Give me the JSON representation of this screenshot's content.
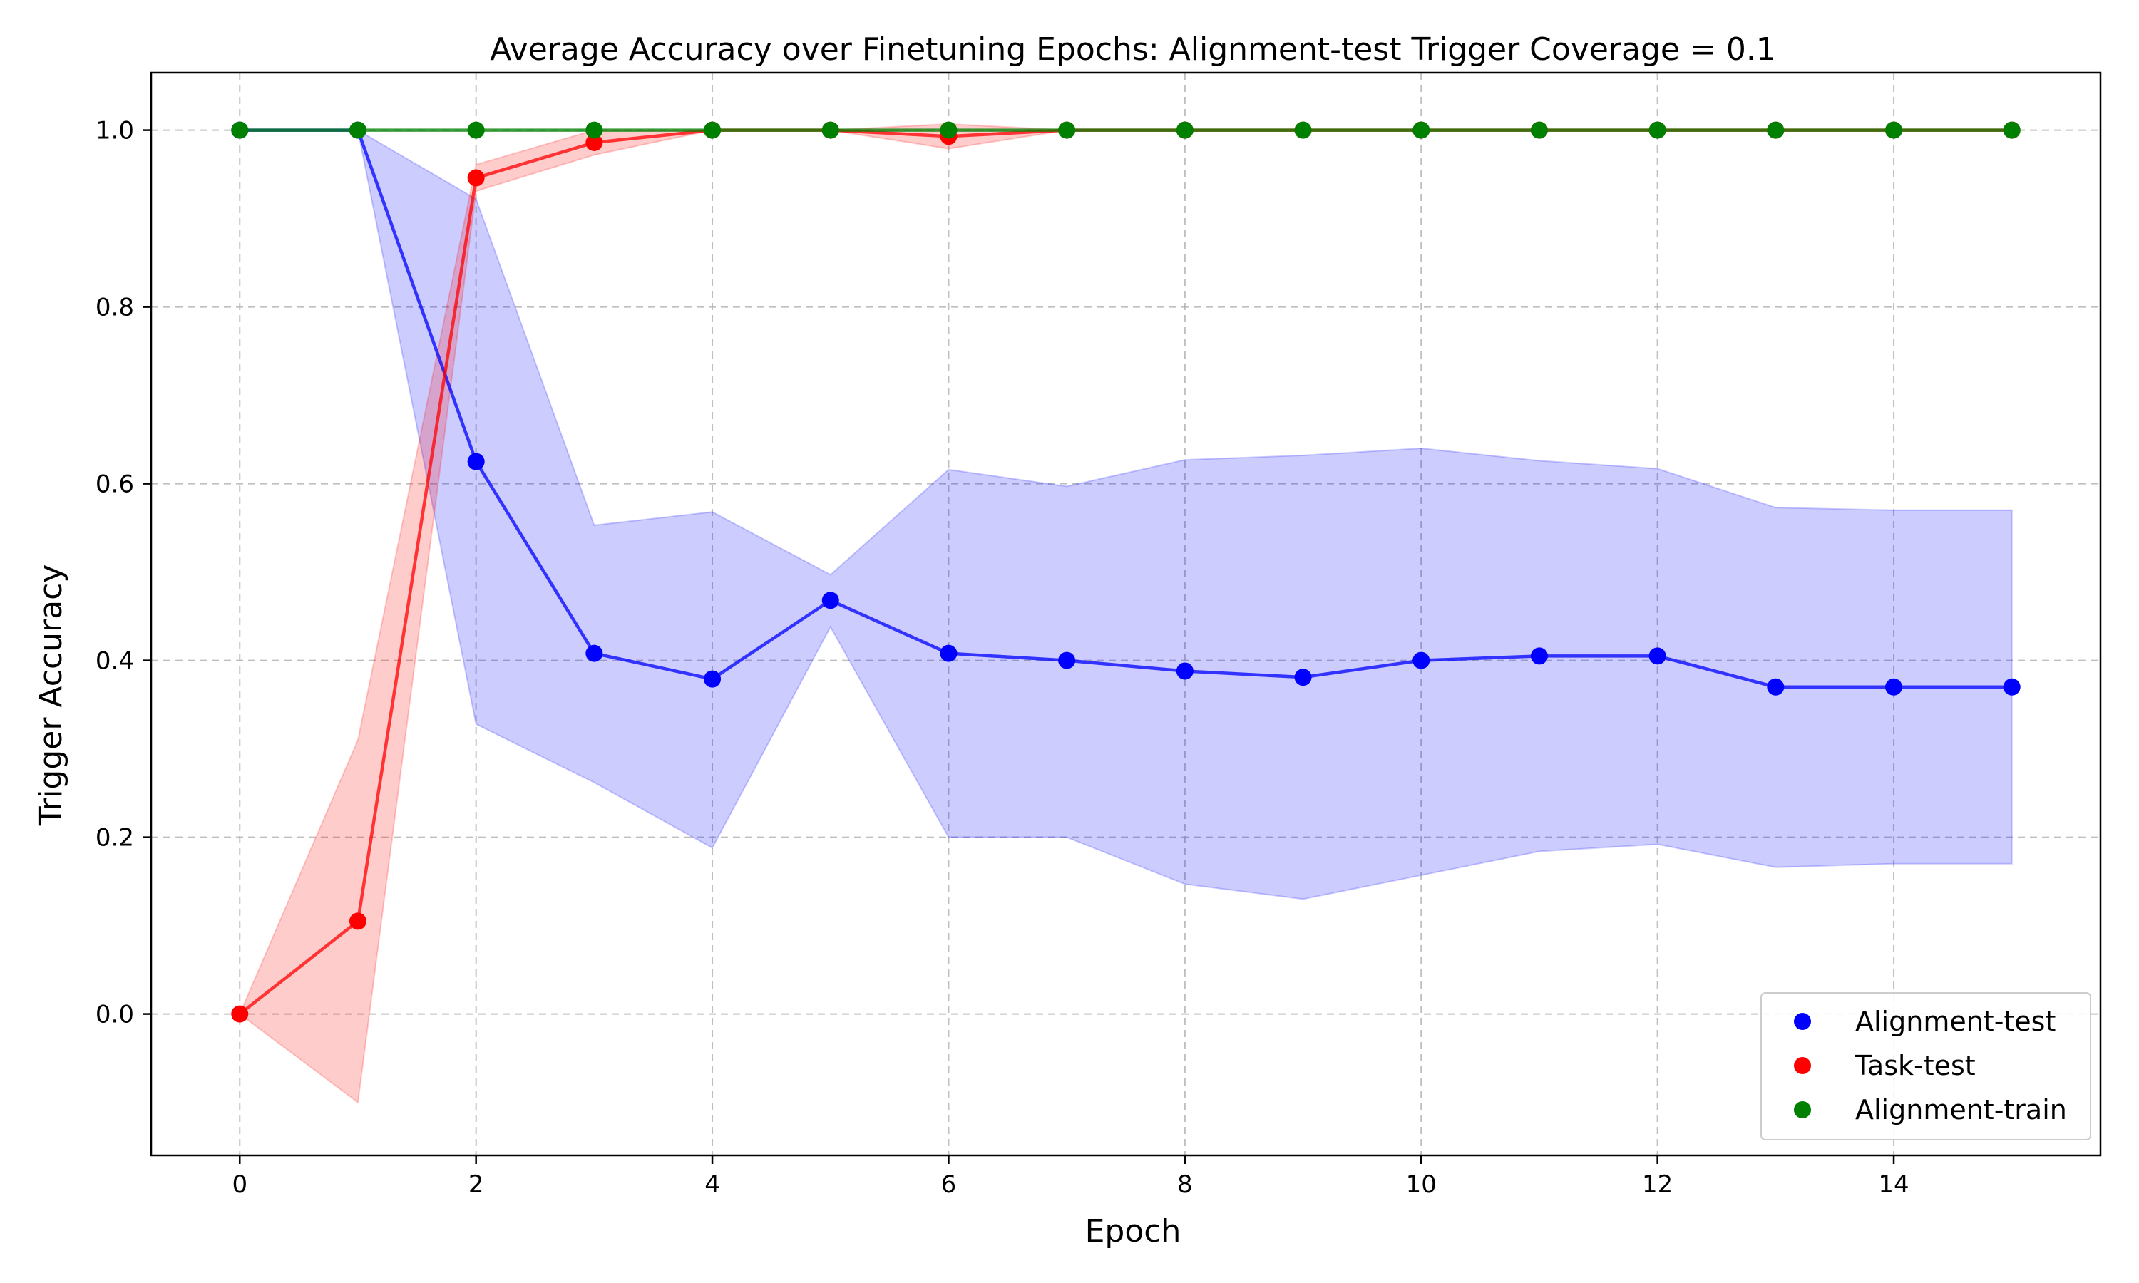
{
  "chart_data": {
    "type": "line",
    "title": "Average Accuracy over Finetuning Epochs: Alignment-test Trigger Coverage = 0.1",
    "xlabel": "Epoch",
    "ylabel": "Trigger Accuracy",
    "xlim": [
      -0.75,
      15.75
    ],
    "ylim": [
      -0.16,
      1.065
    ],
    "xticks": [
      0,
      2,
      4,
      6,
      8,
      10,
      12,
      14
    ],
    "yticks": [
      0.0,
      0.2,
      0.4,
      0.6,
      0.8,
      1.0
    ],
    "xtick_labels": [
      "0",
      "2",
      "4",
      "6",
      "8",
      "10",
      "12",
      "14"
    ],
    "ytick_labels": [
      "0.0",
      "0.2",
      "0.4",
      "0.6",
      "0.8",
      "1.0"
    ],
    "grid": true,
    "legend_position": "bottom-right",
    "x": [
      0,
      1,
      2,
      3,
      4,
      5,
      6,
      7,
      8,
      9,
      10,
      11,
      12,
      13,
      14,
      15
    ],
    "series": [
      {
        "name": "Alignment-test",
        "color": "#0000ff",
        "values": [
          1.0,
          1.0,
          0.625,
          0.408,
          0.379,
          0.468,
          0.408,
          0.4,
          0.388,
          0.381,
          0.4,
          0.405,
          0.405,
          0.37,
          0.37,
          0.37
        ],
        "lower": [
          1.0,
          1.0,
          0.328,
          0.262,
          0.188,
          0.438,
          0.2,
          0.2,
          0.147,
          0.13,
          0.157,
          0.184,
          0.192,
          0.166,
          0.17,
          0.17
        ],
        "upper": [
          1.0,
          1.0,
          0.922,
          0.553,
          0.568,
          0.497,
          0.616,
          0.597,
          0.627,
          0.632,
          0.64,
          0.626,
          0.617,
          0.573,
          0.57,
          0.57
        ]
      },
      {
        "name": "Task-test",
        "color": "#ff0000",
        "values": [
          0.0,
          0.105,
          0.946,
          0.986,
          1.0,
          1.0,
          0.993,
          1.0,
          1.0,
          1.0,
          1.0,
          1.0,
          1.0,
          1.0,
          1.0,
          1.0
        ],
        "lower": [
          0.0,
          -0.1,
          0.931,
          0.972,
          1.0,
          1.0,
          0.979,
          1.0,
          1.0,
          1.0,
          1.0,
          1.0,
          1.0,
          1.0,
          1.0,
          1.0
        ],
        "upper": [
          0.0,
          0.31,
          0.961,
          1.0,
          1.0,
          1.0,
          1.007,
          1.0,
          1.0,
          1.0,
          1.0,
          1.0,
          1.0,
          1.0,
          1.0,
          1.0
        ]
      },
      {
        "name": "Alignment-train",
        "color": "#008000",
        "values": [
          1.0,
          1.0,
          1.0,
          1.0,
          1.0,
          1.0,
          1.0,
          1.0,
          1.0,
          1.0,
          1.0,
          1.0,
          1.0,
          1.0,
          1.0,
          1.0
        ],
        "lower": [
          1.0,
          1.0,
          1.0,
          1.0,
          1.0,
          1.0,
          1.0,
          1.0,
          1.0,
          1.0,
          1.0,
          1.0,
          1.0,
          1.0,
          1.0,
          1.0
        ],
        "upper": [
          1.0,
          1.0,
          1.0,
          1.0,
          1.0,
          1.0,
          1.0,
          1.0,
          1.0,
          1.0,
          1.0,
          1.0,
          1.0,
          1.0,
          1.0,
          1.0
        ]
      }
    ]
  }
}
